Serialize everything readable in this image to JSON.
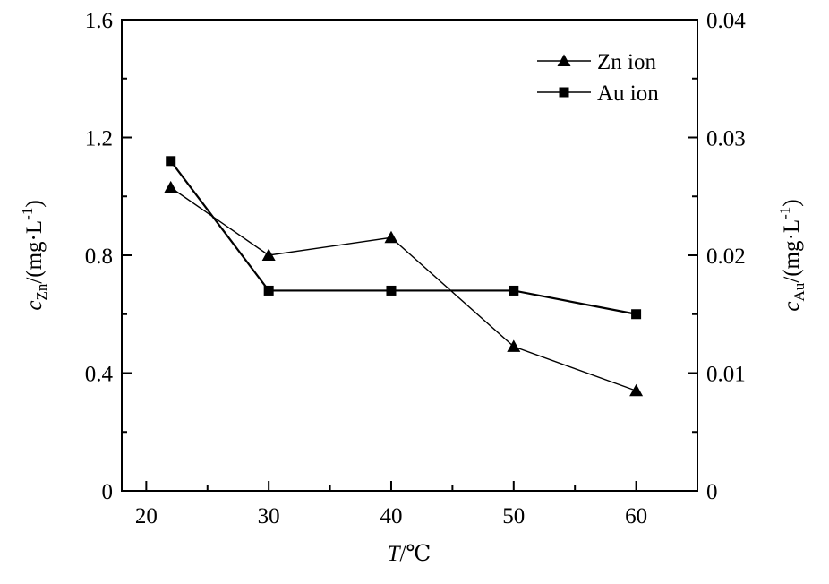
{
  "chart_data": {
    "type": "line",
    "x": [
      22,
      30,
      40,
      50,
      60
    ],
    "xlabel_var": "T",
    "xlabel_unit": "/℃",
    "xlim": [
      18,
      65
    ],
    "xticks": [
      "20",
      "30",
      "40",
      "50",
      "60"
    ],
    "ylabel_left": {
      "var": "c",
      "sub": "Zn",
      "unit": "/(mg·L",
      "exp": "-1",
      "close": ")"
    },
    "ylabel_right": {
      "var": "c",
      "sub": "Au",
      "unit": "/(mg·L",
      "exp": "-1",
      "close": ")"
    },
    "ylim_left": [
      0,
      1.6
    ],
    "ylim_right": [
      0,
      0.04
    ],
    "yticks_left": [
      "0",
      "0.4",
      "0.8",
      "1.2",
      "1.6"
    ],
    "yticks_right": [
      "0",
      "0.01",
      "0.02",
      "0.03",
      "0.04"
    ],
    "series": [
      {
        "name": "Zn ion",
        "marker": "triangle",
        "axis": "left",
        "values": [
          1.03,
          0.8,
          0.86,
          0.49,
          0.34
        ]
      },
      {
        "name": "Au ion",
        "marker": "square",
        "axis": "right",
        "values": [
          0.028,
          0.017,
          0.017,
          0.017,
          0.015
        ]
      }
    ],
    "legend": "top-right",
    "grid": false
  }
}
